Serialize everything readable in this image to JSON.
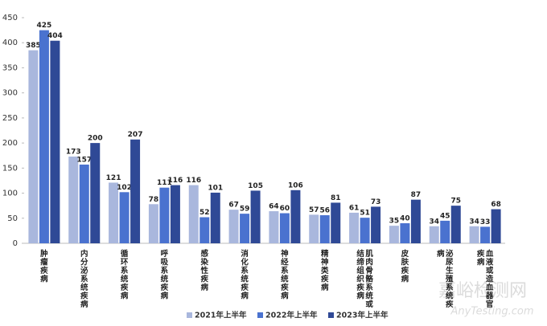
{
  "chart_data": {
    "type": "bar",
    "categories": [
      "肿瘤疾病",
      "内分泌系统疾病",
      "循环系统疾病",
      "呼吸系统疾病",
      "感染性疾病",
      "消化系统疾病",
      "神经系统疾病",
      "精神类疾病",
      "肌肉骨骼系统或结缔组织疾病",
      "皮肤疾病",
      "泌尿生殖系统疾病",
      "血液或造血器官疾病"
    ],
    "series": [
      {
        "name": "2021年上半年",
        "color": "#a9b7dd",
        "values": [
          385,
          173,
          121,
          78,
          116,
          67,
          64,
          57,
          61,
          35,
          34,
          34
        ]
      },
      {
        "name": "2022年上半年",
        "color": "#4a72cf",
        "values": [
          425,
          157,
          102,
          111,
          52,
          59,
          60,
          56,
          51,
          40,
          45,
          33
        ]
      },
      {
        "name": "2023年上半年",
        "color": "#2f4996",
        "values": [
          404,
          200,
          207,
          116,
          101,
          105,
          106,
          81,
          73,
          87,
          75,
          68
        ]
      }
    ],
    "ylim": [
      0,
      450
    ],
    "yticks": [
      0,
      50,
      100,
      150,
      200,
      250,
      300,
      350,
      400,
      450
    ],
    "legend": "bottom",
    "watermark": {
      "title": "嘉峪检测网",
      "subtitle": "AnyTesting.com"
    }
  }
}
